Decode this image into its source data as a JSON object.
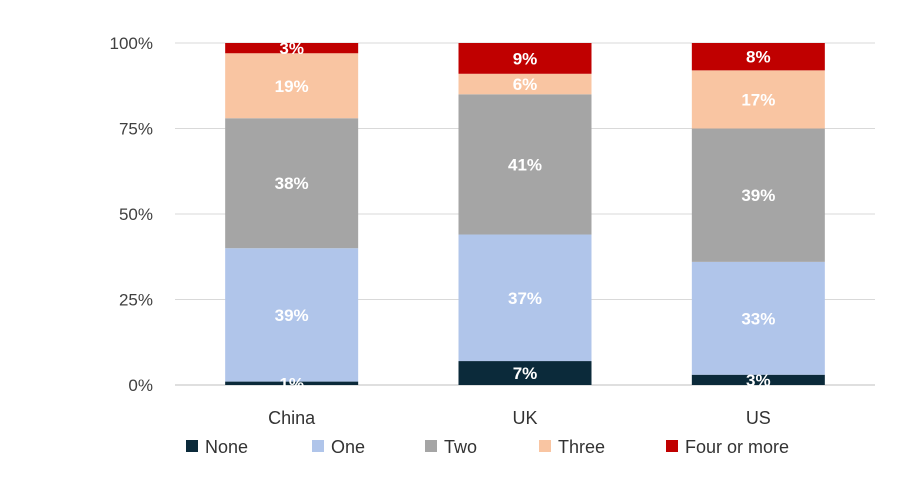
{
  "chart_data": {
    "type": "bar",
    "stacked": true,
    "title": "",
    "xlabel": "",
    "ylabel": "",
    "ylim": [
      0,
      100
    ],
    "yticks": [
      "0%",
      "25%",
      "50%",
      "75%",
      "100%"
    ],
    "ytick_values": [
      0,
      25,
      50,
      75,
      100
    ],
    "grid": true,
    "legend_position": "bottom",
    "categories": [
      "China",
      "UK",
      "US"
    ],
    "series": [
      {
        "name": "None",
        "color": "#0b2a3a",
        "values": [
          1,
          7,
          3
        ],
        "labels": [
          "1%",
          "7%",
          "3%"
        ]
      },
      {
        "name": "One",
        "color": "#b0c5ea",
        "values": [
          39,
          37,
          33
        ],
        "labels": [
          "39%",
          "37%",
          "33%"
        ]
      },
      {
        "name": "Two",
        "color": "#a5a5a5",
        "values": [
          38,
          41,
          39
        ],
        "labels": [
          "38%",
          "41%",
          "39%"
        ]
      },
      {
        "name": "Three",
        "color": "#f9c5a2",
        "values": [
          19,
          6,
          17
        ],
        "labels": [
          "19%",
          "6%",
          "17%"
        ]
      },
      {
        "name": "Four or more",
        "color": "#c00000",
        "values": [
          3,
          9,
          8
        ],
        "labels": [
          "3%",
          "9%",
          "8%"
        ]
      }
    ]
  }
}
